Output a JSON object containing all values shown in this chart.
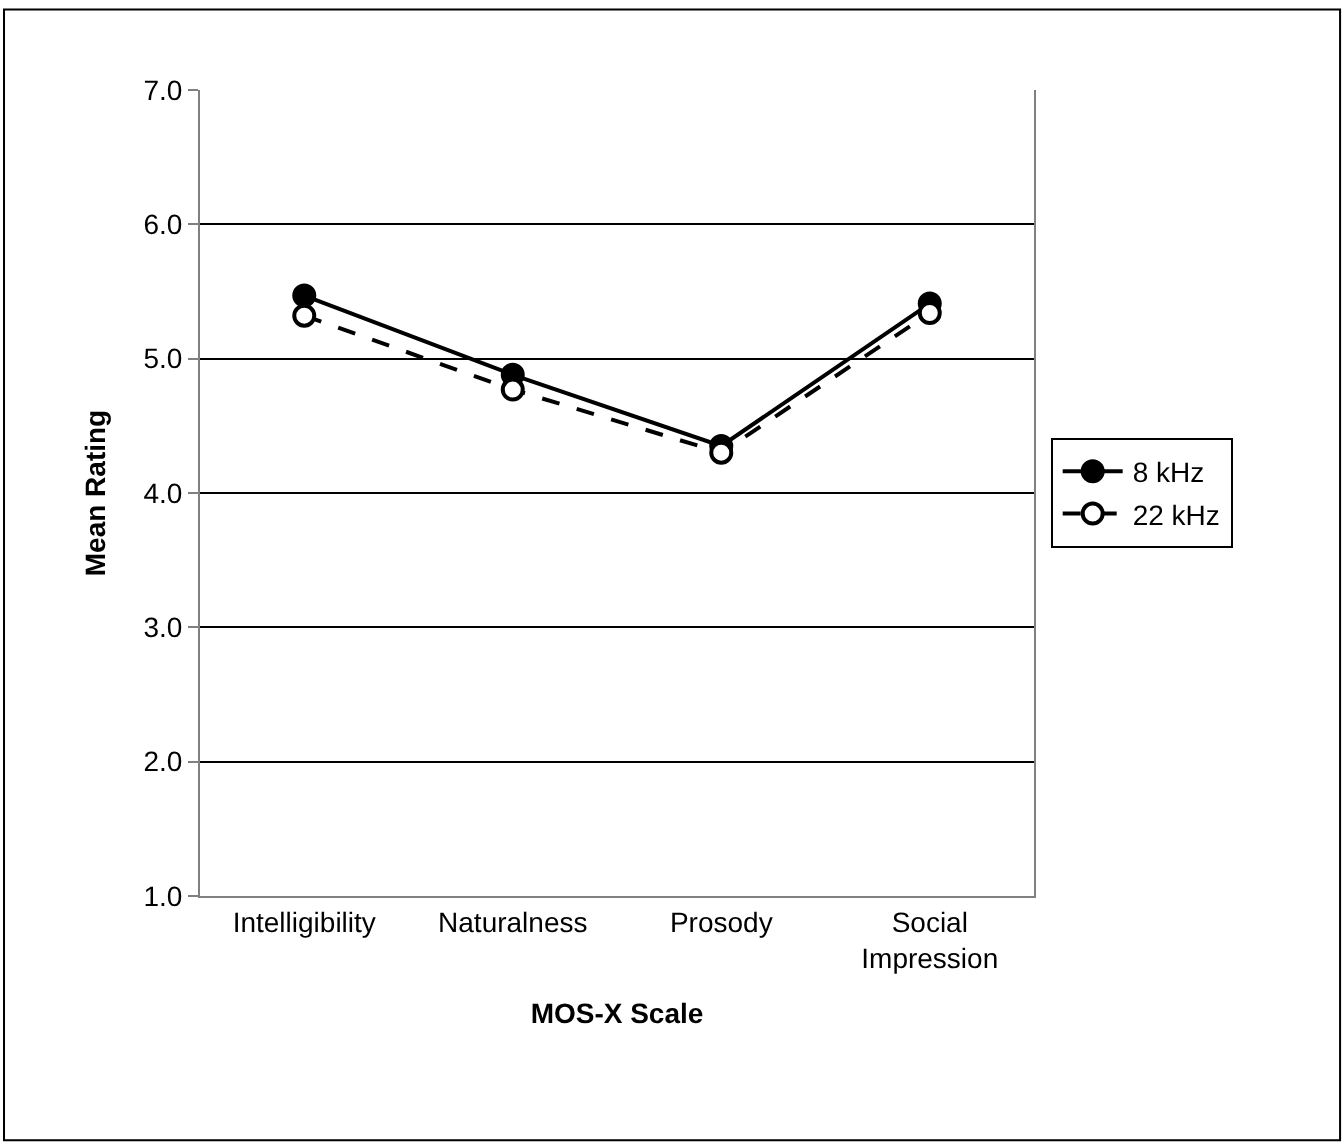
{
  "chart_data": {
    "type": "line",
    "xlabel": "MOS-X Scale",
    "ylabel": "Mean Rating",
    "categories": [
      "Intelligibility",
      "Naturalness",
      "Prosody",
      "Social Impression"
    ],
    "series": [
      {
        "name": "8 kHz",
        "color": "#000000",
        "values": [
          5.47,
          4.88,
          4.35,
          5.41
        ],
        "line_style": "solid"
      },
      {
        "name": "22 kHz",
        "color": "#000000",
        "values": [
          5.32,
          4.77,
          4.3,
          5.34
        ],
        "line_style": "dashed"
      }
    ],
    "ylim": [
      1.0,
      7.0
    ],
    "yticks": [
      {
        "value": 1,
        "label": "1.0"
      },
      {
        "value": 2,
        "label": "2.0"
      },
      {
        "value": 3,
        "label": "3.0"
      },
      {
        "value": 4,
        "label": "4.0"
      },
      {
        "value": 5,
        "label": "5.0"
      },
      {
        "value": 6,
        "label": "6.0"
      },
      {
        "value": 7,
        "label": "7.0"
      }
    ],
    "grid": "y",
    "legend": "right",
    "marker": "circle"
  }
}
